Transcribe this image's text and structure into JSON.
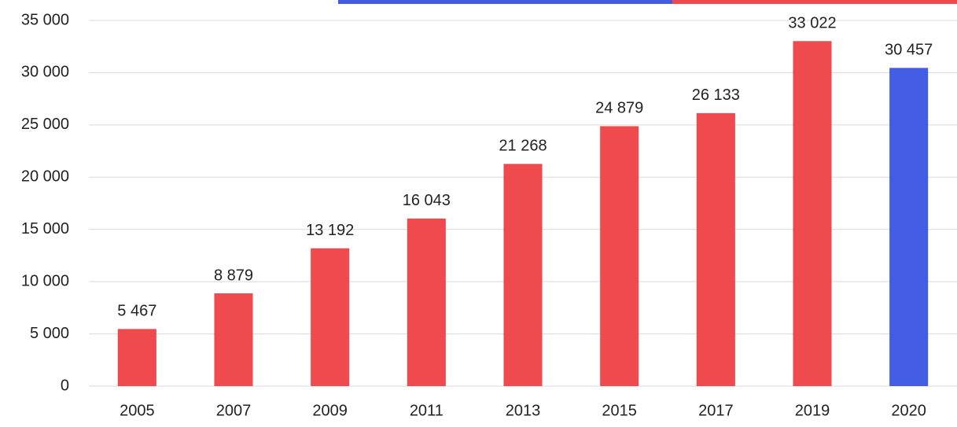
{
  "chart_data": {
    "type": "bar",
    "categories": [
      "2005",
      "2007",
      "2009",
      "2011",
      "2013",
      "2015",
      "2017",
      "2019",
      "2020"
    ],
    "values": [
      5467,
      8879,
      13192,
      16043,
      21268,
      24879,
      26133,
      33022,
      30457
    ],
    "value_labels": [
      "5 467",
      "8 879",
      "13 192",
      "16 043",
      "21 268",
      "24 879",
      "26 133",
      "33 022",
      "30 457"
    ],
    "colors": [
      "#ef4a4d",
      "#ef4a4d",
      "#ef4a4d",
      "#ef4a4d",
      "#ef4a4d",
      "#ef4a4d",
      "#ef4a4d",
      "#ef4a4d",
      "#435ce4"
    ],
    "ylim": [
      0,
      35000
    ],
    "yticks": [
      0,
      {
        "value": 5000,
        "label": "5 000"
      },
      {
        "value": 10000,
        "label": "10 000"
      },
      {
        "value": 15000,
        "label": "15 000"
      },
      {
        "value": 20000,
        "label": "20 000"
      },
      {
        "value": 25000,
        "label": "25 000"
      },
      {
        "value": 30000,
        "label": "30 000"
      },
      {
        "value": 35000,
        "label": "35 000"
      }
    ],
    "grid": true
  }
}
